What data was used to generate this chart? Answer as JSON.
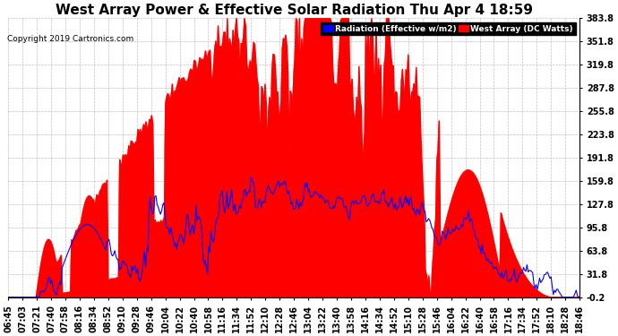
{
  "title": "West Array Power & Effective Solar Radiation Thu Apr 4 18:59",
  "copyright": "Copyright 2019 Cartronics.com",
  "legend_radiation": "Radiation (Effective w/m2)",
  "legend_west": "West Array (DC Watts)",
  "ylim": [
    -0.2,
    383.8
  ],
  "yticks": [
    383.8,
    351.8,
    319.8,
    287.8,
    255.8,
    223.8,
    191.8,
    159.8,
    127.8,
    95.8,
    63.8,
    31.8,
    -0.2
  ],
  "bg_color": "#ffffff",
  "plot_bg_color": "#ffffff",
  "grid_color": "#c0c0c0",
  "fill_color": "#ff0000",
  "line_color": "#0000ff",
  "title_fontsize": 11,
  "tick_fontsize": 7,
  "xtick_labels": [
    "06:45",
    "07:03",
    "07:21",
    "07:40",
    "07:58",
    "08:16",
    "08:34",
    "08:52",
    "09:10",
    "09:28",
    "09:46",
    "10:04",
    "10:22",
    "10:40",
    "10:58",
    "11:16",
    "11:34",
    "11:52",
    "12:10",
    "12:28",
    "12:46",
    "13:04",
    "13:22",
    "13:40",
    "13:58",
    "14:16",
    "14:34",
    "14:52",
    "15:10",
    "15:28",
    "15:46",
    "16:04",
    "16:22",
    "16:40",
    "16:58",
    "17:16",
    "17:34",
    "17:52",
    "18:10",
    "18:28",
    "18:46"
  ]
}
